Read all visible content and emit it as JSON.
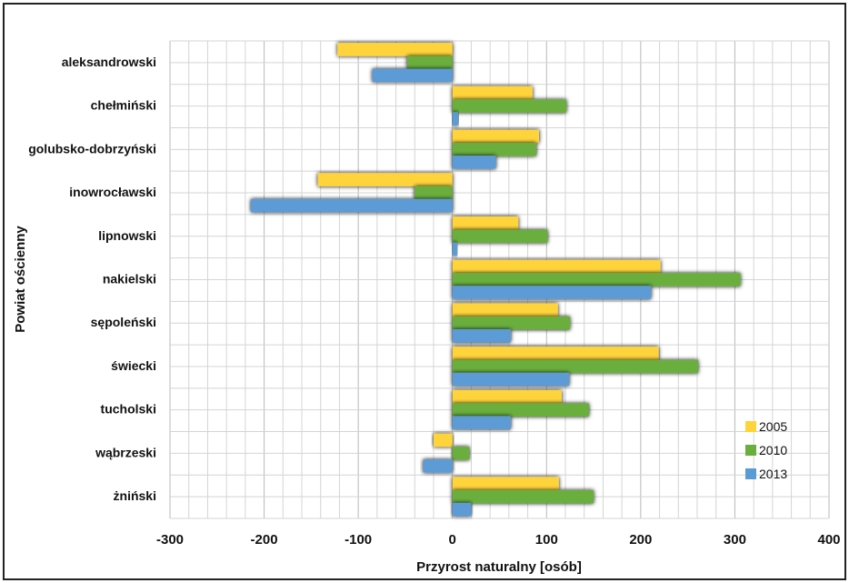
{
  "chart_data": {
    "type": "bar",
    "orientation": "horizontal",
    "categories": [
      "aleksandrowski",
      "chełmiński",
      "golubsko-dobrzyński",
      "inowrocławski",
      "lipnowski",
      "nakielski",
      "sępoleński",
      "świecki",
      "tucholski",
      "wąbrzeski",
      "żniński"
    ],
    "series": [
      {
        "name": "2005",
        "color": "#FFD43B",
        "values": [
          -122,
          85,
          92,
          -143,
          70,
          221,
          112,
          219,
          116,
          -20,
          113
        ]
      },
      {
        "name": "2010",
        "color": "#6AAF3D",
        "values": [
          -48,
          121,
          89,
          -40,
          101,
          306,
          125,
          261,
          145,
          18,
          150
        ]
      },
      {
        "name": "2013",
        "color": "#5B9BD5",
        "values": [
          -85,
          6,
          46,
          -214,
          5,
          211,
          62,
          124,
          62,
          -31,
          20
        ]
      }
    ],
    "xlabel": "Przyrost naturalny [osób]",
    "ylabel": "Powiat ościenny",
    "xlim": [
      -300,
      400
    ],
    "xticks": [
      -300,
      -200,
      -100,
      0,
      100,
      200,
      300,
      400
    ],
    "xtick_labels": [
      "-300",
      "-200",
      "-100",
      "0",
      "100",
      "200",
      "300",
      "400"
    ],
    "minor_grid_step": 20,
    "grid": true,
    "legend_position": "bottom-right"
  }
}
